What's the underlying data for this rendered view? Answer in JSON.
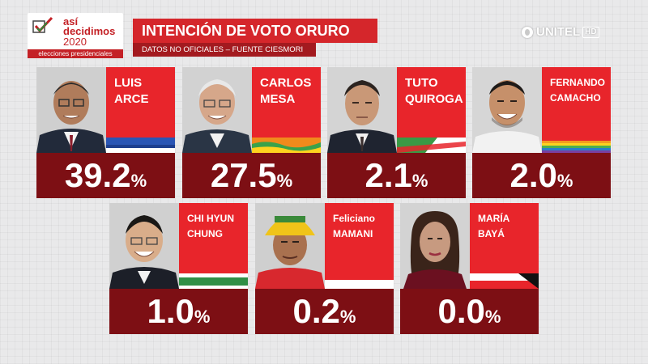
{
  "logo": {
    "line1": "así",
    "line2": "decidimos",
    "line3": "2020",
    "subtitle": "elecciones presidenciales"
  },
  "header": {
    "title": "INTENCIÓN DE VOTO ORURO",
    "source": "DATOS NO OFICIALES – FUENTE CIESMORI"
  },
  "brand": {
    "name": "UNITEL",
    "hd": "HD"
  },
  "candidates": [
    {
      "name1": "LUIS",
      "name2": "ARCE",
      "percent": "39.2",
      "sign": "%"
    },
    {
      "name1": "CARLOS",
      "name2": "MESA",
      "percent": "27.5",
      "sign": "%"
    },
    {
      "name1": "TUTO",
      "name2": "QUIROGA",
      "percent": "2.1",
      "sign": "%"
    },
    {
      "name1": "FERNANDO",
      "name2": "CAMACHO",
      "percent": "2.0",
      "sign": "%"
    },
    {
      "name1": "CHI HYUN",
      "name2": "CHUNG",
      "percent": "1.0",
      "sign": "%"
    },
    {
      "name1": "Feliciano",
      "name2": "MAMANI",
      "percent": "0.2",
      "sign": "%"
    },
    {
      "name1": "MARÍA",
      "name2": "BAYÁ",
      "percent": "0.0",
      "sign": "%"
    }
  ]
}
